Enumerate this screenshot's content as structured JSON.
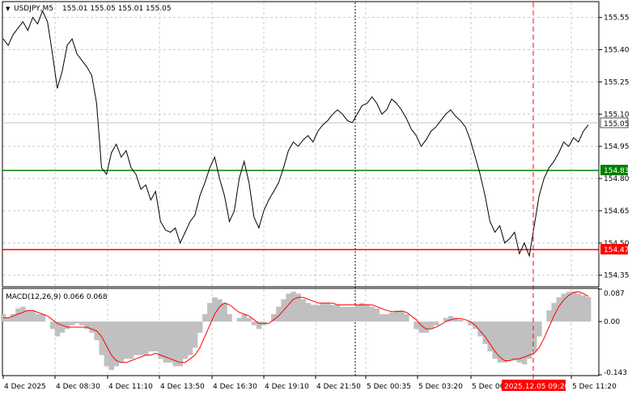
{
  "header": {
    "symbol_label": "USDJPY,M5",
    "ohlc_label": "155.01 155.05 155.01 155.05"
  },
  "main_price_axis": {
    "ticks": [
      "155.55",
      "155.40",
      "155.25",
      "155.10",
      "154.95",
      "154.80",
      "154.65",
      "154.50",
      "154.35"
    ],
    "current_price_label": "155.05",
    "green_line_label": "154.83",
    "red_line_label": "154.47"
  },
  "macd_panel": {
    "label": "MACD(12,26,9) 0.066 0.068",
    "axis_ticks": [
      "0.087",
      "0.00",
      "-0.143"
    ]
  },
  "time_axis": {
    "labels": [
      "4 Dec 2025",
      "4 Dec 08:30",
      "4 Dec 11:10",
      "4 Dec 13:50",
      "4 Dec 16:30",
      "4 Dec 19:10",
      "4 Dec 21:50",
      "5 Dec 00:35",
      "5 Dec 03:20",
      "5 Dec 06:",
      "5 Dec 11:20"
    ],
    "cursor_label": "2025.12.05 09:20"
  },
  "colors": {
    "price_line": "#000000",
    "green_level": "#008000",
    "red_level": "#ff0000",
    "macd_hist": "#c0c0c0",
    "macd_signal": "#ff0000",
    "grid": "#c8c8c8"
  },
  "chart_data": {
    "type": "line",
    "title": "USDJPY,M5",
    "ylim": [
      154.3,
      155.62
    ],
    "price": [
      155.45,
      155.42,
      155.47,
      155.5,
      155.53,
      155.49,
      155.55,
      155.52,
      155.58,
      155.53,
      155.38,
      155.22,
      155.3,
      155.42,
      155.45,
      155.38,
      155.35,
      155.32,
      155.28,
      155.15,
      154.85,
      154.82,
      154.92,
      154.96,
      154.9,
      154.93,
      154.85,
      154.82,
      154.75,
      154.77,
      154.7,
      154.74,
      154.6,
      154.56,
      154.55,
      154.57,
      154.5,
      154.55,
      154.6,
      154.63,
      154.72,
      154.78,
      154.85,
      154.9,
      154.8,
      154.72,
      154.6,
      154.65,
      154.8,
      154.88,
      154.78,
      154.62,
      154.57,
      154.65,
      154.7,
      154.74,
      154.78,
      154.85,
      154.93,
      154.97,
      154.95,
      154.98,
      155.0,
      154.97,
      155.02,
      155.05,
      155.07,
      155.1,
      155.12,
      155.1,
      155.07,
      155.06,
      155.1,
      155.14,
      155.15,
      155.18,
      155.15,
      155.1,
      155.12,
      155.17,
      155.15,
      155.12,
      155.08,
      155.03,
      155.0,
      154.95,
      154.98,
      155.02,
      155.04,
      155.07,
      155.1,
      155.12,
      155.09,
      155.07,
      155.04,
      154.98,
      154.9,
      154.82,
      154.72,
      154.6,
      154.55,
      154.58,
      154.5,
      154.52,
      154.55,
      154.45,
      154.5,
      154.44,
      154.58,
      154.72,
      154.8,
      154.85,
      154.88,
      154.92,
      154.97,
      154.95,
      154.99,
      154.97,
      155.02,
      155.05
    ],
    "macd_hist": [
      0.02,
      0.01,
      0.02,
      0.035,
      0.04,
      0.03,
      0.03,
      0.02,
      0.02,
      0.0,
      -0.02,
      -0.04,
      -0.03,
      -0.02,
      -0.01,
      -0.005,
      -0.01,
      -0.02,
      -0.03,
      -0.05,
      -0.09,
      -0.12,
      -0.13,
      -0.12,
      -0.11,
      -0.1,
      -0.1,
      -0.09,
      -0.09,
      -0.09,
      -0.08,
      -0.08,
      -0.1,
      -0.11,
      -0.11,
      -0.12,
      -0.12,
      -0.1,
      -0.09,
      -0.07,
      -0.03,
      0.02,
      0.05,
      0.065,
      0.06,
      0.05,
      0.02,
      0.0,
      0.01,
      0.02,
      0.01,
      -0.01,
      -0.02,
      -0.01,
      0.0,
      0.02,
      0.04,
      0.06,
      0.075,
      0.08,
      0.075,
      0.06,
      0.05,
      0.045,
      0.045,
      0.05,
      0.05,
      0.045,
      0.045,
      0.04,
      0.04,
      0.04,
      0.045,
      0.05,
      0.045,
      0.04,
      0.035,
      0.02,
      0.02,
      0.025,
      0.03,
      0.03,
      0.02,
      0.0,
      -0.02,
      -0.03,
      -0.03,
      -0.02,
      -0.01,
      0.0,
      0.01,
      0.015,
      0.01,
      0.005,
      0.0,
      -0.01,
      -0.02,
      -0.04,
      -0.06,
      -0.08,
      -0.1,
      -0.11,
      -0.11,
      -0.105,
      -0.105,
      -0.11,
      -0.115,
      -0.1,
      -0.08,
      -0.04,
      0.0,
      0.03,
      0.05,
      0.065,
      0.075,
      0.08,
      0.08,
      0.075,
      0.07,
      0.066
    ],
    "macd_signal": [
      0.01,
      0.01,
      0.015,
      0.02,
      0.025,
      0.03,
      0.03,
      0.025,
      0.02,
      0.015,
      0.005,
      -0.005,
      -0.01,
      -0.015,
      -0.015,
      -0.015,
      -0.015,
      -0.015,
      -0.02,
      -0.025,
      -0.04,
      -0.065,
      -0.09,
      -0.105,
      -0.11,
      -0.11,
      -0.105,
      -0.1,
      -0.095,
      -0.09,
      -0.09,
      -0.085,
      -0.09,
      -0.095,
      -0.1,
      -0.105,
      -0.11,
      -0.11,
      -0.1,
      -0.09,
      -0.07,
      -0.04,
      -0.01,
      0.02,
      0.04,
      0.05,
      0.045,
      0.035,
      0.025,
      0.02,
      0.015,
      0.005,
      -0.005,
      -0.005,
      -0.005,
      0.005,
      0.015,
      0.03,
      0.045,
      0.06,
      0.065,
      0.065,
      0.06,
      0.055,
      0.05,
      0.05,
      0.05,
      0.05,
      0.045,
      0.045,
      0.045,
      0.045,
      0.045,
      0.045,
      0.045,
      0.045,
      0.04,
      0.035,
      0.03,
      0.027,
      0.027,
      0.028,
      0.025,
      0.015,
      0.005,
      -0.01,
      -0.02,
      -0.02,
      -0.015,
      -0.008,
      0.0,
      0.005,
      0.008,
      0.008,
      0.005,
      0.0,
      -0.01,
      -0.025,
      -0.04,
      -0.06,
      -0.08,
      -0.095,
      -0.105,
      -0.105,
      -0.1,
      -0.1,
      -0.095,
      -0.09,
      -0.085,
      -0.07,
      -0.045,
      -0.015,
      0.015,
      0.04,
      0.058,
      0.07,
      0.078,
      0.08,
      0.075,
      0.068
    ],
    "macd_ylim": [
      -0.143,
      0.087
    ]
  }
}
